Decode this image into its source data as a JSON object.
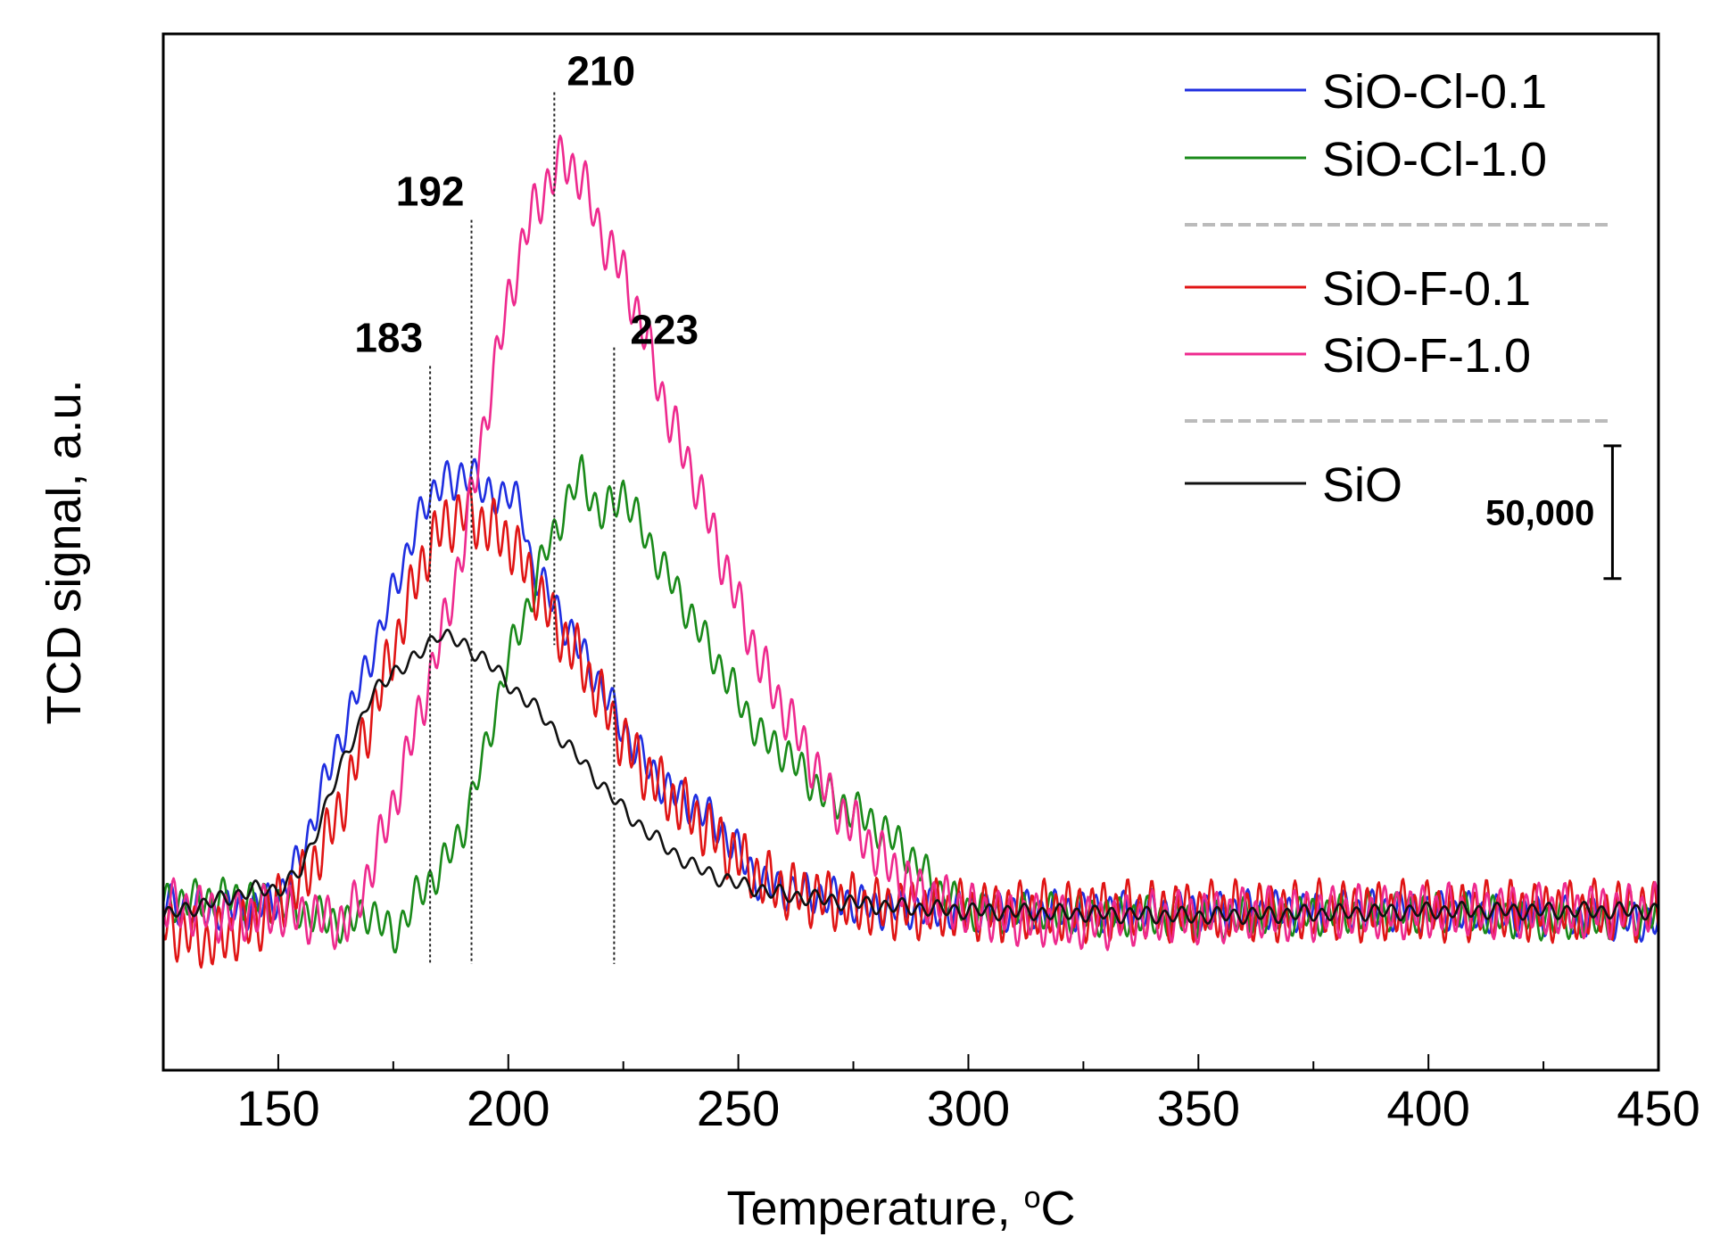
{
  "chart_data": {
    "type": "line",
    "title": "",
    "xlabel": "Temperature, ",
    "xlabel_sup": "o",
    "xlabel_unit": "C",
    "ylabel": "TCD signal, a.u.",
    "xlim": [
      125,
      450
    ],
    "ylim": [
      -60000,
      330000
    ],
    "x_ticks": [
      150,
      200,
      250,
      300,
      350,
      400,
      450
    ],
    "x_tick_labels": [
      "150",
      "200",
      "250",
      "300",
      "350",
      "400",
      "450"
    ],
    "x_minor_step": 25,
    "y_tick_labels_shown": false,
    "legend_position": "top-right",
    "legend_groups": [
      [
        "SiO-Cl-0.1",
        "SiO-Cl-1.0"
      ],
      [
        "SiO-F-0.1",
        "SiO-F-1.0"
      ],
      [
        "SiO"
      ]
    ],
    "series": [
      {
        "name": "SiO-Cl-0.1",
        "color": "#1f2ee0",
        "noise": 6000,
        "noise_period": 3.0,
        "points": [
          [
            125,
            3000
          ],
          [
            135,
            0
          ],
          [
            145,
            1000
          ],
          [
            150,
            5000
          ],
          [
            155,
            20000
          ],
          [
            160,
            48000
          ],
          [
            165,
            72000
          ],
          [
            170,
            95000
          ],
          [
            175,
            120000
          ],
          [
            180,
            145000
          ],
          [
            183,
            155000
          ],
          [
            186,
            165000
          ],
          [
            188,
            158000
          ],
          [
            192,
            168000
          ],
          [
            195,
            155000
          ],
          [
            200,
            158000
          ],
          [
            203,
            150000
          ],
          [
            205,
            130000
          ],
          [
            210,
            115000
          ],
          [
            215,
            100000
          ],
          [
            220,
            85000
          ],
          [
            225,
            68000
          ],
          [
            230,
            55000
          ],
          [
            235,
            45000
          ],
          [
            240,
            40000
          ],
          [
            245,
            33000
          ],
          [
            250,
            22000
          ],
          [
            255,
            10000
          ],
          [
            260,
            8000
          ],
          [
            270,
            5000
          ],
          [
            280,
            1000
          ],
          [
            300,
            0
          ],
          [
            330,
            0
          ],
          [
            350,
            0
          ],
          [
            400,
            0
          ],
          [
            450,
            -4000
          ]
        ]
      },
      {
        "name": "SiO-Cl-1.0",
        "color": "#1a8a1a",
        "noise": 6000,
        "noise_period": 3.0,
        "points": [
          [
            125,
            3000
          ],
          [
            140,
            5000
          ],
          [
            150,
            3000
          ],
          [
            160,
            -3000
          ],
          [
            165,
            -5000
          ],
          [
            170,
            0
          ],
          [
            175,
            -10000
          ],
          [
            180,
            5000
          ],
          [
            185,
            15000
          ],
          [
            190,
            30000
          ],
          [
            195,
            60000
          ],
          [
            200,
            95000
          ],
          [
            205,
            118000
          ],
          [
            208,
            135000
          ],
          [
            212,
            150000
          ],
          [
            216,
            165000
          ],
          [
            220,
            148000
          ],
          [
            225,
            158000
          ],
          [
            230,
            140000
          ],
          [
            235,
            125000
          ],
          [
            240,
            110000
          ],
          [
            245,
            95000
          ],
          [
            250,
            80000
          ],
          [
            255,
            65000
          ],
          [
            260,
            60000
          ],
          [
            265,
            50000
          ],
          [
            270,
            42000
          ],
          [
            275,
            38000
          ],
          [
            280,
            32000
          ],
          [
            285,
            25000
          ],
          [
            290,
            15000
          ],
          [
            295,
            5000
          ],
          [
            300,
            0
          ],
          [
            350,
            -3000
          ],
          [
            400,
            0
          ],
          [
            430,
            -4000
          ],
          [
            450,
            -2000
          ]
        ]
      },
      {
        "name": "SiO-F-0.1",
        "color": "#e01515",
        "noise": 9000,
        "noise_period": 2.6,
        "points": [
          [
            125,
            -5000
          ],
          [
            135,
            -12000
          ],
          [
            145,
            -5000
          ],
          [
            150,
            3000
          ],
          [
            155,
            10000
          ],
          [
            160,
            25000
          ],
          [
            165,
            45000
          ],
          [
            170,
            72000
          ],
          [
            175,
            98000
          ],
          [
            180,
            125000
          ],
          [
            183,
            138000
          ],
          [
            186,
            145000
          ],
          [
            190,
            150000
          ],
          [
            195,
            145000
          ],
          [
            200,
            140000
          ],
          [
            205,
            125000
          ],
          [
            210,
            108000
          ],
          [
            215,
            96000
          ],
          [
            220,
            80000
          ],
          [
            225,
            64000
          ],
          [
            230,
            52000
          ],
          [
            235,
            43000
          ],
          [
            240,
            36000
          ],
          [
            245,
            28000
          ],
          [
            250,
            20000
          ],
          [
            255,
            12000
          ],
          [
            260,
            8000
          ],
          [
            270,
            4000
          ],
          [
            280,
            1000
          ],
          [
            300,
            0
          ],
          [
            350,
            0
          ],
          [
            400,
            0
          ],
          [
            450,
            0
          ]
        ]
      },
      {
        "name": "SiO-F-1.0",
        "color": "#ee2a8e",
        "noise": 8000,
        "noise_period": 2.8,
        "points": [
          [
            125,
            2000
          ],
          [
            140,
            -2000
          ],
          [
            150,
            0
          ],
          [
            160,
            -3000
          ],
          [
            165,
            -5000
          ],
          [
            170,
            15000
          ],
          [
            175,
            40000
          ],
          [
            180,
            70000
          ],
          [
            185,
            100000
          ],
          [
            190,
            135000
          ],
          [
            195,
            185000
          ],
          [
            200,
            230000
          ],
          [
            205,
            262000
          ],
          [
            208,
            272000
          ],
          [
            212,
            283000
          ],
          [
            216,
            276000
          ],
          [
            220,
            255000
          ],
          [
            225,
            240000
          ],
          [
            230,
            215000
          ],
          [
            235,
            185000
          ],
          [
            240,
            165000
          ],
          [
            245,
            140000
          ],
          [
            250,
            115000
          ],
          [
            255,
            92000
          ],
          [
            260,
            75000
          ],
          [
            265,
            60000
          ],
          [
            270,
            42000
          ],
          [
            275,
            32000
          ],
          [
            280,
            22000
          ],
          [
            285,
            13000
          ],
          [
            290,
            6000
          ],
          [
            300,
            0
          ],
          [
            320,
            -5000
          ],
          [
            350,
            -2000
          ],
          [
            400,
            0
          ],
          [
            450,
            0
          ]
        ]
      },
      {
        "name": "SiO",
        "color": "#111111",
        "noise": 2500,
        "noise_period": 3.8,
        "points": [
          [
            125,
            -2000
          ],
          [
            135,
            3000
          ],
          [
            145,
            8000
          ],
          [
            150,
            8000
          ],
          [
            155,
            15000
          ],
          [
            160,
            38000
          ],
          [
            165,
            60000
          ],
          [
            170,
            80000
          ],
          [
            175,
            90000
          ],
          [
            180,
            95000
          ],
          [
            185,
            105000
          ],
          [
            190,
            100000
          ],
          [
            195,
            95000
          ],
          [
            200,
            85000
          ],
          [
            205,
            78000
          ],
          [
            210,
            68000
          ],
          [
            215,
            58000
          ],
          [
            220,
            48000
          ],
          [
            225,
            38000
          ],
          [
            230,
            30000
          ],
          [
            235,
            23000
          ],
          [
            240,
            17000
          ],
          [
            245,
            13000
          ],
          [
            250,
            10000
          ],
          [
            255,
            8000
          ],
          [
            260,
            6000
          ],
          [
            270,
            4000
          ],
          [
            280,
            2000
          ],
          [
            300,
            0
          ],
          [
            350,
            -2000
          ],
          [
            400,
            0
          ],
          [
            450,
            0
          ]
        ]
      }
    ],
    "peak_markers": [
      {
        "x": 183,
        "label": "183",
        "top": 205000
      },
      {
        "x": 192,
        "label": "192",
        "top": 260000
      },
      {
        "x": 210,
        "label": "210",
        "top": 308000
      },
      {
        "x": 223,
        "label": "223",
        "top": 212000
      }
    ],
    "scale_bar": {
      "label": "50,000",
      "value": 50000,
      "x": 440,
      "y_top": 175000
    }
  }
}
